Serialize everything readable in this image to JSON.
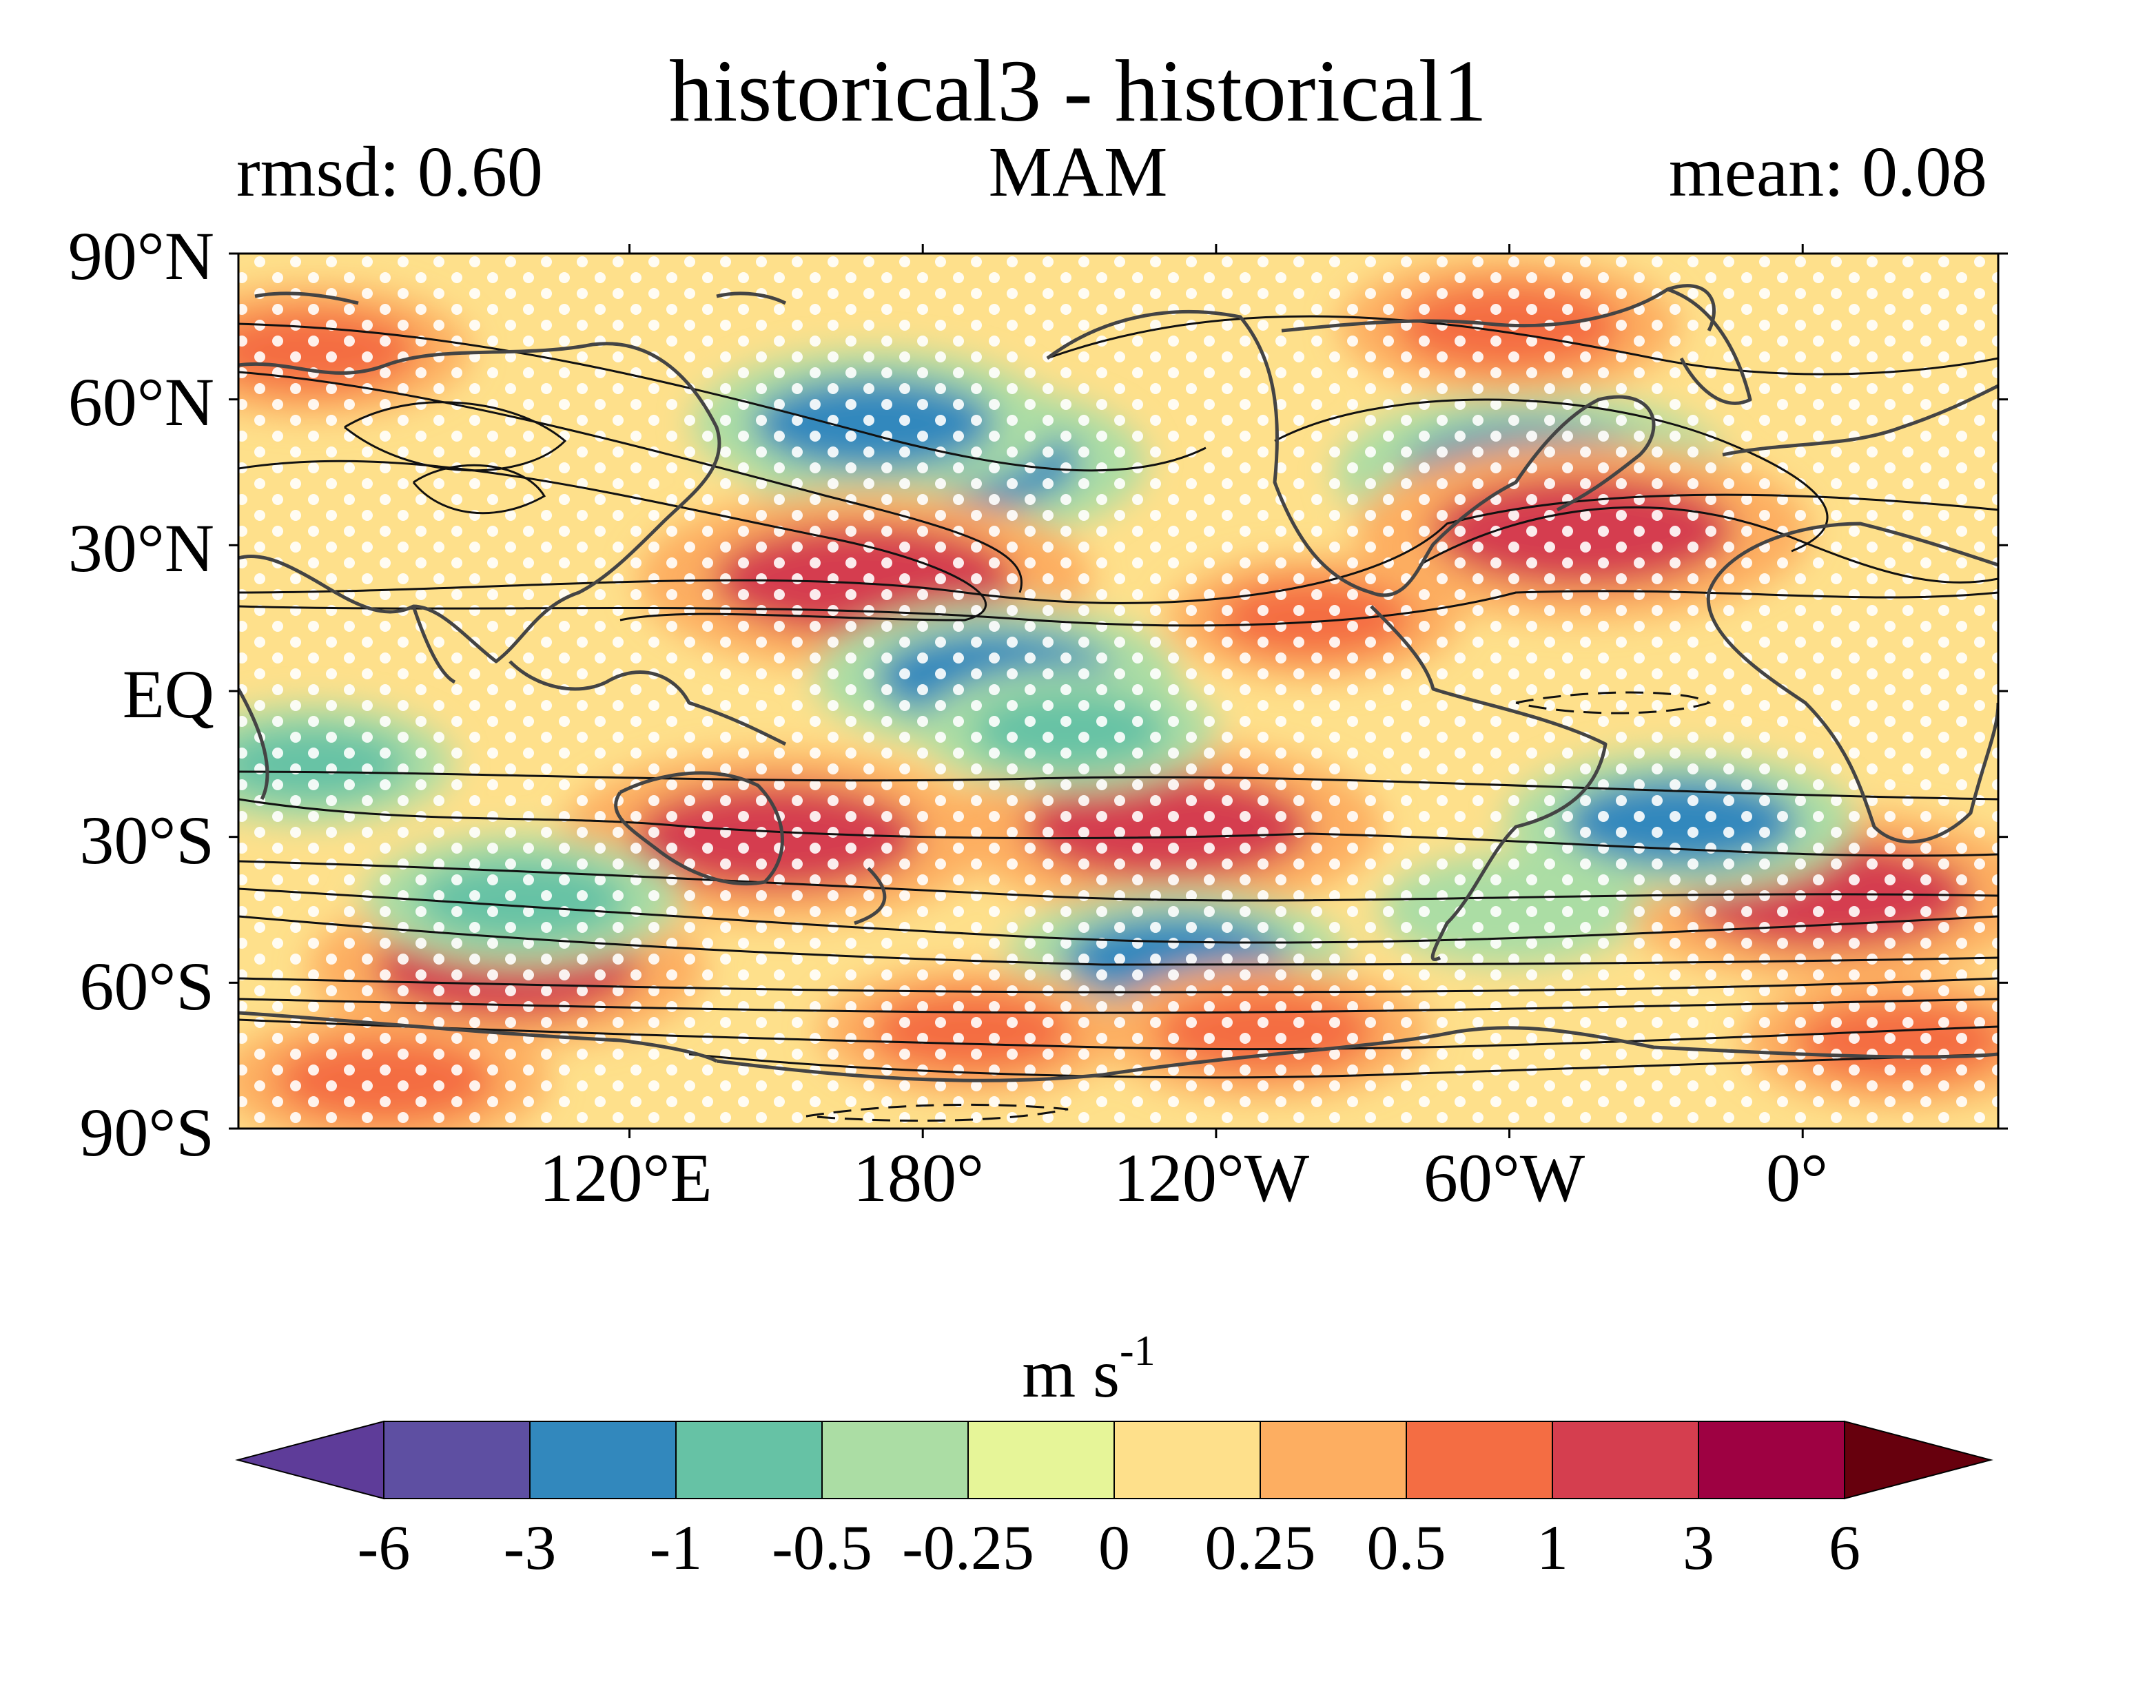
{
  "title": "historical3 - historical1",
  "left_annotation": "rmsd: 0.60",
  "center_annotation": "MAM",
  "right_annotation": "mean: 0.08",
  "y_ticks": [
    "90°N",
    "60°N",
    "30°N",
    "EQ",
    "30°S",
    "60°S",
    "90°S"
  ],
  "x_ticks": [
    "120°E",
    "180°",
    "120°W",
    "60°W",
    "0°"
  ],
  "colorbar": {
    "units": "m s",
    "units_exponent": "-1",
    "tick_labels": [
      "-6",
      "-3",
      "-1",
      "-0.5",
      "-0.25",
      "0",
      "0.25",
      "0.5",
      "1",
      "3",
      "6"
    ],
    "colors": [
      "#5e3c99",
      "#5e4fa2",
      "#3288bd",
      "#66c2a5",
      "#abdda4",
      "#e6f598",
      "#fee08b",
      "#fdae61",
      "#f46d43",
      "#d53e4f",
      "#9e0142",
      "#67000d"
    ]
  },
  "chart_data": {
    "type": "heatmap",
    "title": "historical3 - historical1",
    "projection": "plate carree, centered on 160°E",
    "lon_range_east": [
      40,
      400
    ],
    "lat_range": [
      -90,
      90
    ],
    "xlabel": "",
    "ylabel": "",
    "levels": [
      -6,
      -3,
      -1,
      -0.5,
      -0.25,
      0,
      0.25,
      0.5,
      1,
      3,
      6
    ],
    "stippling": "white dots over much of the domain",
    "overlay": "black contour lines of the base climatology; coastlines in dark grey",
    "anomaly_regions": [
      {
        "lon": 185,
        "lat": 47,
        "value": -1.5
      },
      {
        "lon": 170,
        "lat": 55,
        "value": -1.2
      },
      {
        "lon": 305,
        "lat": 45,
        "value": -1.5
      },
      {
        "lon": 168,
        "lat": 23,
        "value": 2.0
      },
      {
        "lon": 315,
        "lat": 33,
        "value": 2.0
      },
      {
        "lon": 150,
        "lat": -30,
        "value": 1.8
      },
      {
        "lon": 230,
        "lat": -28,
        "value": 1.8
      },
      {
        "lon": 365,
        "lat": -42,
        "value": 1.8
      },
      {
        "lon": 95,
        "lat": -57,
        "value": 1.5
      },
      {
        "lon": 195,
        "lat": 3,
        "value": -1.2
      },
      {
        "lon": 210,
        "lat": -8,
        "value": -0.6
      },
      {
        "lon": 335,
        "lat": -27,
        "value": -1.1
      },
      {
        "lon": 232,
        "lat": -55,
        "value": -1.0
      },
      {
        "lon": 98,
        "lat": -43,
        "value": -0.8
      },
      {
        "lon": 55,
        "lat": -15,
        "value": -0.5
      },
      {
        "lon": 300,
        "lat": 75,
        "value": 1.0
      },
      {
        "lon": 55,
        "lat": 70,
        "value": 0.8
      },
      {
        "lon": 70,
        "lat": -80,
        "value": 0.9
      },
      {
        "lon": 250,
        "lat": -70,
        "value": 0.9
      },
      {
        "lon": 380,
        "lat": -72,
        "value": 0.8
      },
      {
        "lon": 260,
        "lat": 15,
        "value": 0.6
      },
      {
        "lon": 190,
        "lat": -70,
        "value": 0.7
      },
      {
        "lon": 300,
        "lat": -45,
        "value": -0.3
      }
    ]
  }
}
